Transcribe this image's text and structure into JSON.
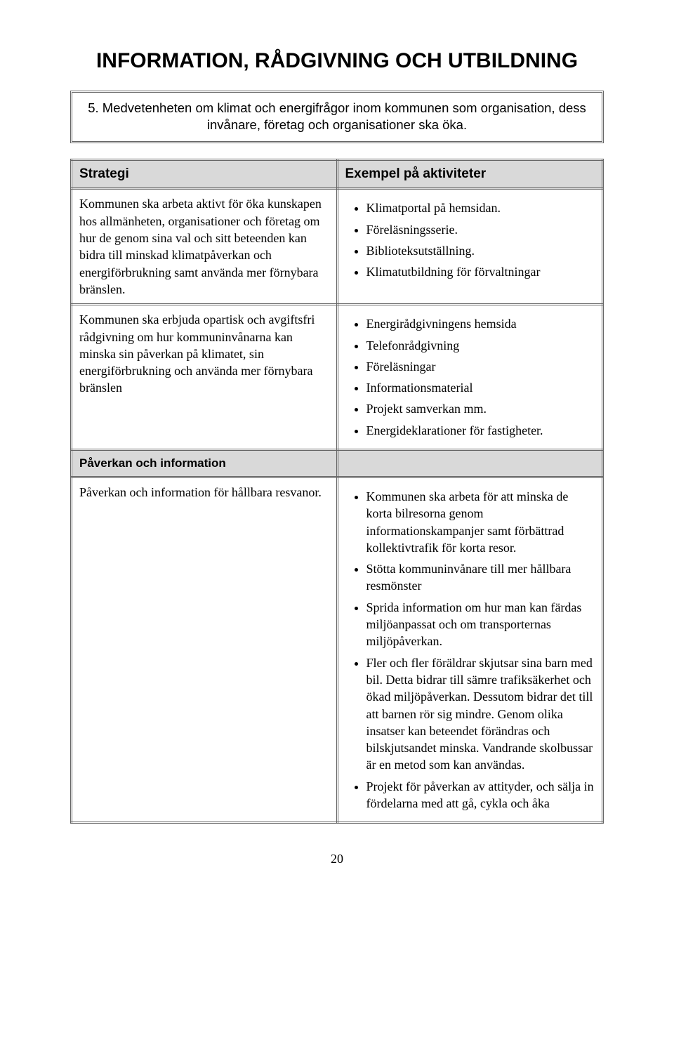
{
  "title": "INFORMATION, RÅDGIVNING OCH UTBILDNING",
  "intro": "5. Medvetenheten om klimat och energifrågor inom kommunen som organisation, dess invånare, företag och organisationer ska öka.",
  "headers": {
    "left": "Strategi",
    "right": "Exempel på aktiviteter"
  },
  "row1": {
    "left": "Kommunen ska arbeta aktivt för öka kunskapen hos allmänheten, organisationer och företag om hur de genom sina val och sitt beteenden kan bidra till minskad klimatpåverkan och energiförbrukning samt använda mer förnybara bränslen.",
    "right": [
      "Klimatportal på hemsidan.",
      "Föreläsningsserie.",
      "Biblioteksutställning.",
      "Klimatutbildning för förvaltningar"
    ]
  },
  "row2": {
    "left": "Kommunen ska erbjuda opartisk och avgiftsfri rådgivning om hur kommuninvånarna kan minska sin påverkan på klimatet, sin energiförbrukning och använda mer förnybara bränslen",
    "right": [
      "Energirådgivningens hemsida",
      "Telefonrådgivning",
      "Föreläsningar",
      "Informationsmaterial",
      "Projekt samverkan mm.",
      "Energideklarationer för fastigheter."
    ]
  },
  "section": "Påverkan och information",
  "row3": {
    "left": "Påverkan och information för hållbara resvanor.",
    "right": [
      "Kommunen ska arbeta för att minska de korta bilresorna genom informationskampanjer samt förbättrad kollektivtrafik för korta resor.",
      "Stötta kommuninvånare till mer hållbara resmönster",
      "Sprida information om hur man kan färdas miljöanpassat och om transporternas miljöpåverkan.",
      "Fler och fler föräldrar skjutsar sina barn med bil. Detta bidrar till sämre trafiksäkerhet och ökad miljöpåverkan. Dessutom bidrar det till att barnen rör sig mindre. Genom olika insatser kan beteendet förändras och bilskjutsandet minska. Vandrande skolbussar är en metod som kan användas.",
      "Projekt för påverkan av attityder, och sälja in fördelarna med att gå, cykla och åka"
    ]
  },
  "page_number": "20"
}
